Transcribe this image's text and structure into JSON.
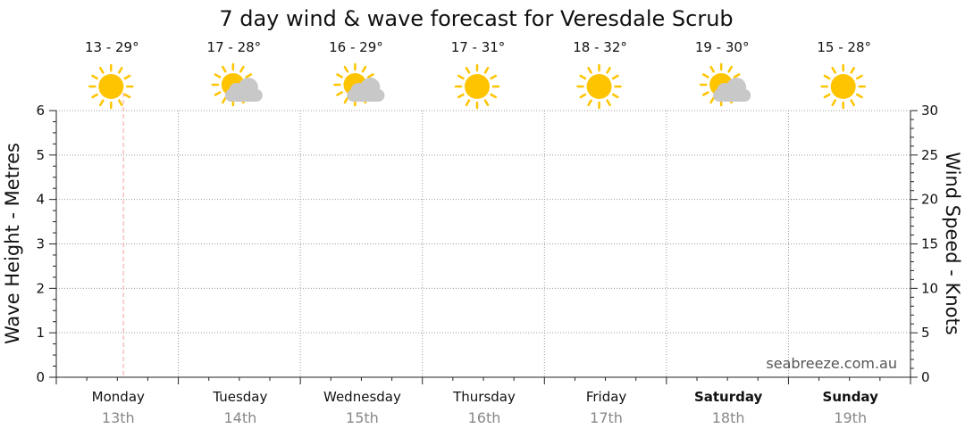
{
  "chart_data": {
    "type": "line",
    "title": "7 day wind & wave forecast for Veresdale Scrub",
    "ylabel_left": "Wave Height - Metres",
    "ylabel_right": "Wind Speed - Knots",
    "ylim_left": [
      0,
      6
    ],
    "ylim_right": [
      0,
      30
    ],
    "yticks_left": [
      "0",
      "1",
      "2",
      "3",
      "4",
      "5",
      "6"
    ],
    "yticks_right": [
      "0",
      "5",
      "10",
      "15",
      "20",
      "25",
      "30"
    ],
    "grid": true,
    "days": [
      {
        "day": "Monday",
        "date": "13th",
        "temp": "13 - 29°",
        "icon": "sun-icon",
        "bold": false
      },
      {
        "day": "Tuesday",
        "date": "14th",
        "temp": "17 - 28°",
        "icon": "sun-cloud-icon",
        "bold": false
      },
      {
        "day": "Wednesday",
        "date": "15th",
        "temp": "16 - 29°",
        "icon": "sun-cloud-icon",
        "bold": false
      },
      {
        "day": "Thursday",
        "date": "16th",
        "temp": "17 - 31°",
        "icon": "sun-icon",
        "bold": false
      },
      {
        "day": "Friday",
        "date": "17th",
        "temp": "18 - 32°",
        "icon": "sun-icon",
        "bold": false
      },
      {
        "day": "Saturday",
        "date": "18th",
        "temp": "19 - 30°",
        "icon": "sun-cloud-icon",
        "bold": true
      },
      {
        "day": "Sunday",
        "date": "19th",
        "temp": "15 - 28°",
        "icon": "sun-icon",
        "bold": true
      }
    ],
    "current_time_marker_day": 0,
    "series": []
  },
  "watermark": "seabreeze.com.au",
  "colors": {
    "sun": "#FFC400",
    "cloud": "#C8C8C8",
    "grid": "#9A9A9A",
    "now_marker": "#F2A39A"
  }
}
